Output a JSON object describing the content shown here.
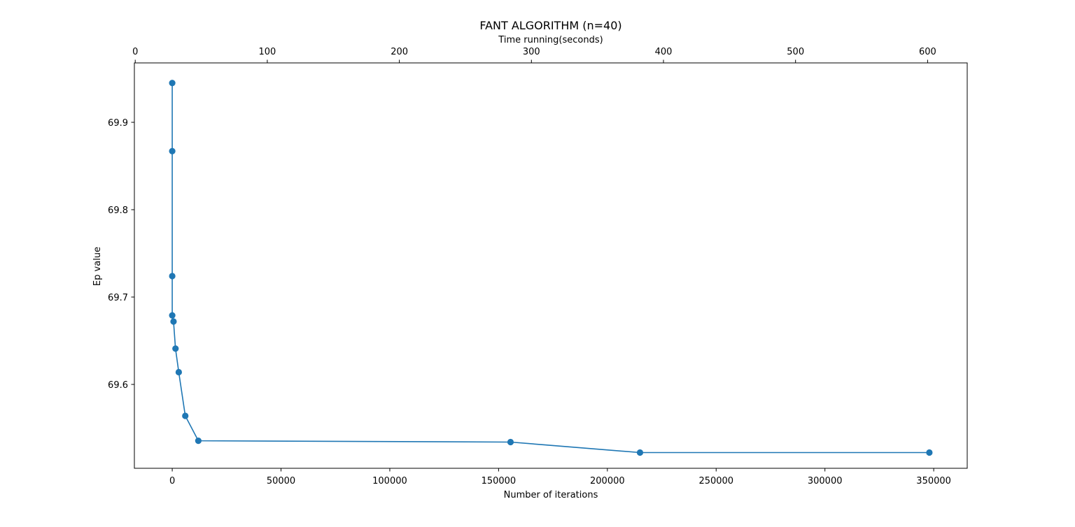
{
  "chart_data": {
    "type": "line",
    "title": "FANT ALGORITHM (n=40)",
    "xlabel": "Number of iterations",
    "x2label": "Time running(seconds)",
    "ylabel": "Ep value",
    "xlim": [
      -17400,
      365400
    ],
    "x2lim": [
      -0.65,
      630
    ],
    "ylim": [
      69.504,
      69.968
    ],
    "xticks": [
      0,
      50000,
      100000,
      150000,
      200000,
      250000,
      300000,
      350000
    ],
    "x2ticks": [
      0,
      100,
      200,
      300,
      400,
      500,
      600
    ],
    "yticks": [
      69.6,
      69.7,
      69.8,
      69.9
    ],
    "grid": false,
    "color": "#1f77b4",
    "series": [
      {
        "name": "",
        "x": [
          0,
          0,
          0,
          0,
          600,
          1500,
          3000,
          6000,
          12000,
          155500,
          215000,
          348000
        ],
        "values": [
          69.945,
          69.867,
          69.724,
          69.679,
          69.672,
          69.641,
          69.614,
          69.564,
          69.5355,
          69.534,
          69.522,
          69.522
        ]
      }
    ]
  }
}
